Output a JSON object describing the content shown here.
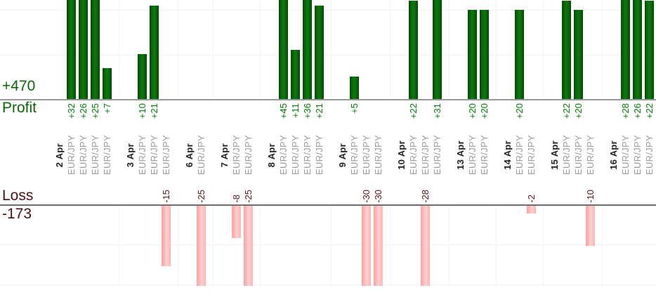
{
  "chart_data": {
    "type": "bar",
    "description": "Daily trading profit and loss bars per currency pair, early-to-mid April",
    "profit_axis": {
      "axis_label": "Profit",
      "total_label": "+470",
      "total": 470,
      "gridline_values": [
        10,
        20
      ],
      "bars_clipped_above": 22,
      "color": "#0a650a"
    },
    "loss_axis": {
      "axis_label": "Loss",
      "total_label": "-173",
      "total": -173,
      "gridline_values": [
        -10,
        -20
      ],
      "bars_clipped_below": -20,
      "color": "#4d0f0f"
    },
    "groups": [
      {
        "date": "2 Apr",
        "trades": [
          {
            "pair": "EUR/JPY",
            "value": 32,
            "label": "+32"
          },
          {
            "pair": "EUR/JPY",
            "value": 26,
            "label": "+26"
          },
          {
            "pair": "EUR/JPY",
            "value": 25,
            "label": "+25"
          },
          {
            "pair": "EUR/JPY",
            "value": 7,
            "label": "+7"
          }
        ]
      },
      {
        "date": "3 Apr",
        "trades": [
          {
            "pair": "EUR/JPY",
            "value": 10,
            "label": "+10"
          },
          {
            "pair": "EUR/JPY",
            "value": 21,
            "label": "+21"
          },
          {
            "pair": "EUR/JPY",
            "value": -15,
            "label": "-15"
          }
        ]
      },
      {
        "date": "6 Apr",
        "trades": [
          {
            "pair": "EUR/JPY",
            "value": -25,
            "label": "-25"
          }
        ]
      },
      {
        "date": "7 Apr",
        "trades": [
          {
            "pair": "EUR/JPY",
            "value": -8,
            "label": "-8"
          },
          {
            "pair": "EUR/JPY",
            "value": -25,
            "label": "-25"
          }
        ]
      },
      {
        "date": "8 Apr",
        "trades": [
          {
            "pair": "EUR/JPY",
            "value": 45,
            "label": "+45"
          },
          {
            "pair": "EUR/JPY",
            "value": 11,
            "label": "+11"
          },
          {
            "pair": "EUR/JPY",
            "value": 36,
            "label": "+36"
          },
          {
            "pair": "EUR/JPY",
            "value": 21,
            "label": "+21"
          }
        ]
      },
      {
        "date": "9 Apr",
        "trades": [
          {
            "pair": "EUR/JPY",
            "value": 5,
            "label": "+5"
          },
          {
            "pair": "EUR/JPY",
            "value": -30,
            "label": "-30"
          },
          {
            "pair": "EUR/JPY",
            "value": -30,
            "label": "-30"
          }
        ]
      },
      {
        "date": "10 Apr",
        "trades": [
          {
            "pair": "EUR/JPY",
            "value": 22,
            "label": "+22"
          },
          {
            "pair": "EUR/JPY",
            "value": -28,
            "label": "-28"
          },
          {
            "pair": "EUR/JPY",
            "value": 31,
            "label": "+31"
          }
        ]
      },
      {
        "date": "13 Apr",
        "trades": [
          {
            "pair": "EUR/JPY",
            "value": 20,
            "label": "+20"
          },
          {
            "pair": "EUR/JPY",
            "value": 20,
            "label": "+20"
          }
        ]
      },
      {
        "date": "14 Apr",
        "trades": [
          {
            "pair": "EUR/JPY",
            "value": 20,
            "label": "+20"
          },
          {
            "pair": "EUR/JPY",
            "value": -2,
            "label": "-2"
          }
        ]
      },
      {
        "date": "15 Apr",
        "trades": [
          {
            "pair": "EUR/JPY",
            "value": 22,
            "label": "+22"
          },
          {
            "pair": "EUR/JPY",
            "value": 20,
            "label": "+20"
          },
          {
            "pair": "EUR/JPY",
            "value": -10,
            "label": "-10"
          }
        ]
      },
      {
        "date": "16 Apr",
        "trades": [
          {
            "pair": "EUR/JPY",
            "value": 28,
            "label": "+28"
          },
          {
            "pair": "EUR/JPY",
            "value": 26,
            "label": "+26"
          },
          {
            "pair": "EUR/JPY",
            "value": 22,
            "label": "+22"
          }
        ]
      }
    ],
    "colors": {
      "profit_bar": "#0b6b0b",
      "loss_bar": "#ffb0b0",
      "profit_value_text": "#008000",
      "loss_value_text": "#5a1414",
      "date_text": "#222222",
      "pair_text": "#9a9a9a",
      "profit_axis_line": "#999999",
      "loss_axis_line": "#6e6e6e",
      "gridline": "#f0f0f0"
    },
    "legend": "none",
    "grid": "on"
  }
}
